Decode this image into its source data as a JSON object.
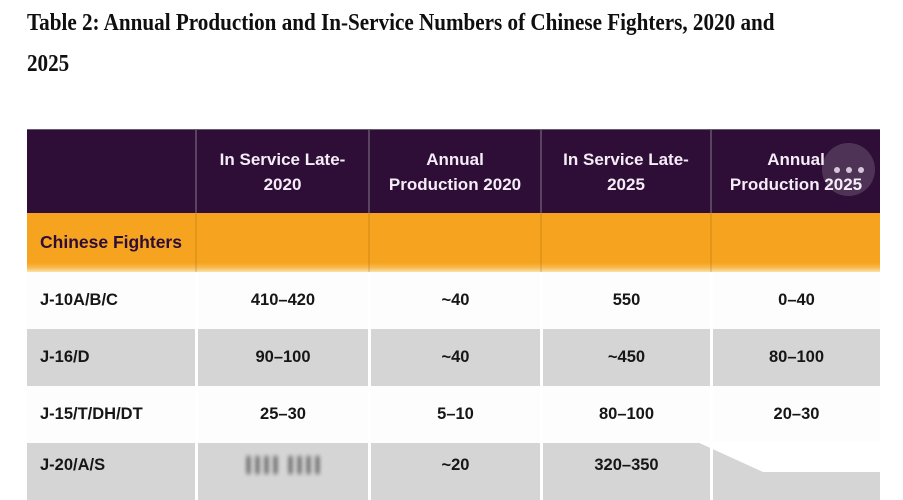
{
  "title": "Table 2: Annual Production and In-Service Numbers of Chinese Fighters, 2020 and\n2025",
  "more_button": {
    "icon": "ellipsis-icon"
  },
  "colors": {
    "header_bg": "#2e0d36",
    "section_bg": "#f6a41f",
    "alt_row_bg": "#d5d5d5",
    "header_text": "#f4ecf6",
    "body_text": "#161616"
  },
  "table": {
    "column_headers": [
      "",
      "In Service Late-\n2020",
      "Annual\nProduction 2020",
      "In Service Late-\n2025",
      "Annual\nProduction 2025"
    ],
    "section_row": {
      "label": "Chinese Fighters"
    },
    "rows": [
      {
        "label": "J-10A/B/C",
        "values": [
          "410–420",
          "~40",
          "550",
          "0–40"
        ]
      },
      {
        "label": "J-16/D",
        "values": [
          "90–100",
          "~40",
          "~450",
          "80–100"
        ]
      },
      {
        "label": "J-15/T/DH/DT",
        "values": [
          "25–30",
          "5–10",
          "80–100",
          "20–30"
        ]
      },
      {
        "label": "J-20/A/S",
        "values": [
          "",
          "~20",
          "320–350",
          ""
        ],
        "blurred_columns": [
          0
        ]
      }
    ]
  }
}
